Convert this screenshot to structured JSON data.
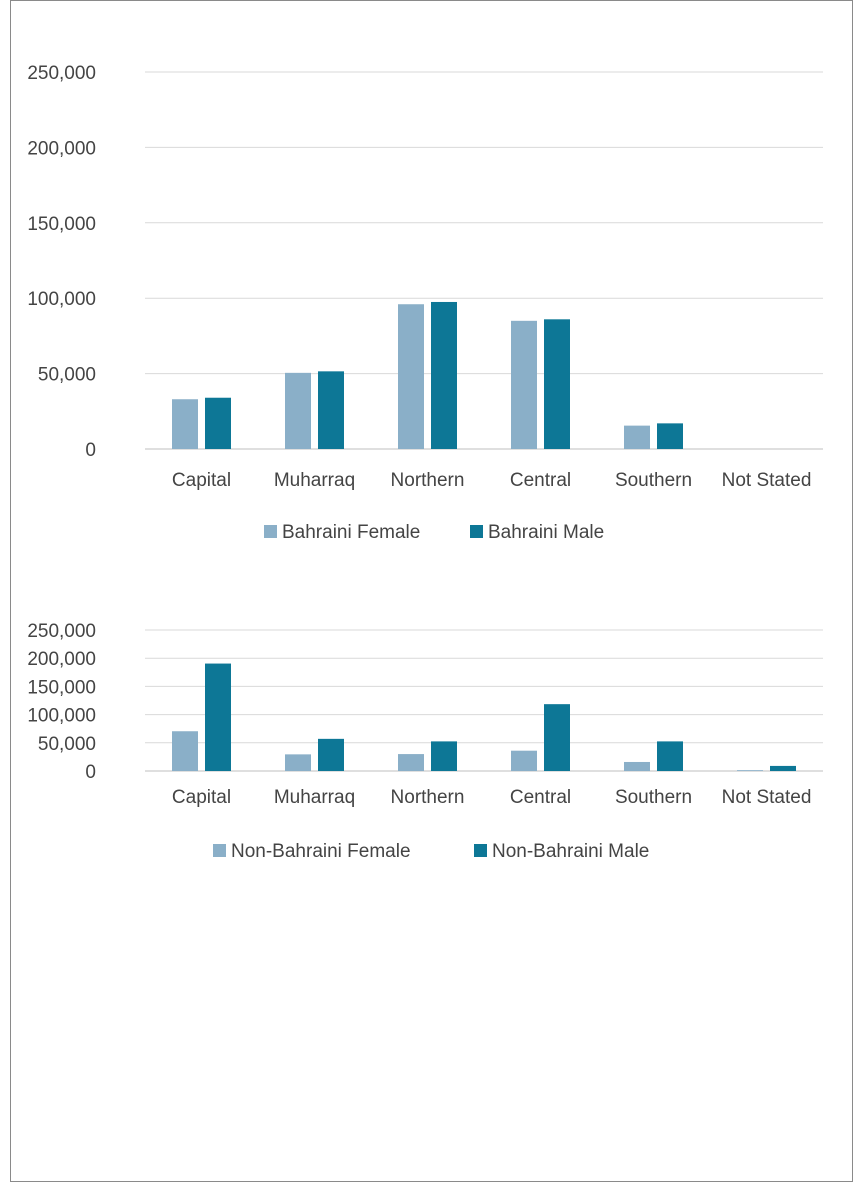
{
  "colors": {
    "female": "#8aafc8",
    "male": "#0d7796",
    "grid": "#d9d9d9",
    "axis": "#bfbfbf",
    "text": "#444444"
  },
  "chart_data": [
    {
      "type": "bar",
      "title": "",
      "xlabel": "",
      "ylabel": "",
      "ylim": [
        0,
        250000
      ],
      "yticks": [
        0,
        50000,
        100000,
        150000,
        200000,
        250000
      ],
      "ytick_labels": [
        "0",
        "50,000",
        "100,000",
        "150,000",
        "200,000",
        "250,000"
      ],
      "grid": true,
      "legend": "bottom",
      "categories": [
        "Capital",
        "Muharraq",
        "Northern",
        "Central",
        "Southern",
        "Not Stated"
      ],
      "series": [
        {
          "name": "Bahraini Female",
          "color": "#8aafc8",
          "values": [
            33000,
            50500,
            96000,
            85000,
            15500,
            0
          ]
        },
        {
          "name": "Bahraini Male",
          "color": "#0d7796",
          "values": [
            34000,
            51500,
            97500,
            86000,
            17000,
            0
          ]
        }
      ]
    },
    {
      "type": "bar",
      "title": "",
      "xlabel": "",
      "ylabel": "",
      "ylim": [
        0,
        250000
      ],
      "yticks": [
        0,
        50000,
        100000,
        150000,
        200000,
        250000
      ],
      "ytick_labels": [
        "0",
        "50,000",
        "100,000",
        "150,000",
        "200,000",
        "250,000"
      ],
      "grid": true,
      "legend": "bottom",
      "categories": [
        "Capital",
        "Muharraq",
        "Northern",
        "Central",
        "Southern",
        "Not Stated"
      ],
      "series": [
        {
          "name": "Non-Bahraini Female",
          "color": "#8aafc8",
          "values": [
            70500,
            29500,
            30000,
            36000,
            16000,
            1500
          ]
        },
        {
          "name": "Non-Bahraini Male",
          "color": "#0d7796",
          "values": [
            190500,
            57000,
            52500,
            118500,
            52500,
            9000
          ]
        }
      ]
    }
  ]
}
